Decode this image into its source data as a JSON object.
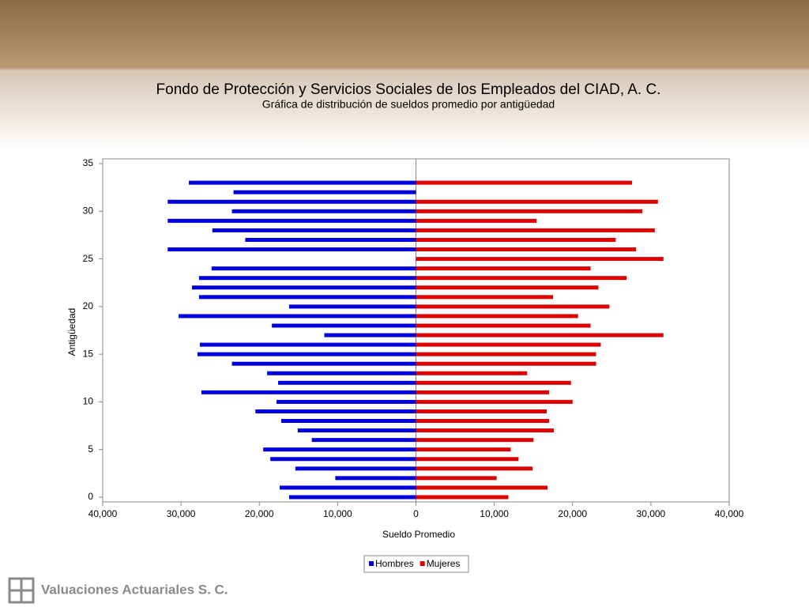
{
  "chart_data": {
    "type": "pyramid",
    "title": "Fondo de Protección y Servicios Sociales de los Empleados del CIAD, A. C.",
    "subtitle": "Gráfica de distribución de sueldos promedio por antigüedad",
    "x_label": "Sueldo Promedio",
    "y_label": "Antigüedad",
    "footer": "Valuaciones Actuariales S. C.",
    "y": [
      0,
      1,
      2,
      3,
      4,
      5,
      6,
      7,
      8,
      9,
      10,
      11,
      12,
      13,
      14,
      15,
      16,
      17,
      18,
      19,
      20,
      21,
      22,
      23,
      24,
      25,
      26,
      27,
      28,
      29,
      30,
      31,
      32,
      33
    ],
    "series": [
      {
        "name": "Hombres",
        "color": "#0000dd",
        "values": [
          -16200,
          -17400,
          -10300,
          -15400,
          -18600,
          -19500,
          -13300,
          -15100,
          -17200,
          -20500,
          -17800,
          -27400,
          -17600,
          -19000,
          -23500,
          -27900,
          -27600,
          -11700,
          -18400,
          -30300,
          -16200,
          -27700,
          -28600,
          -27700,
          -26100,
          0,
          -31700,
          -21800,
          -26000,
          -31700,
          -23500,
          -31700,
          -23300,
          -29000
        ]
      },
      {
        "name": "Mujeres",
        "color": "#dd0000",
        "values": [
          11800,
          16800,
          10300,
          14900,
          13100,
          12100,
          15000,
          17600,
          17000,
          16700,
          20000,
          17000,
          19800,
          14200,
          23000,
          23000,
          23600,
          31600,
          22300,
          20700,
          24700,
          17500,
          23300,
          26900,
          22300,
          31600,
          28100,
          25500,
          30500,
          15400,
          28900,
          30900,
          0,
          27600
        ]
      }
    ],
    "xlim": [
      -40000,
      40000
    ],
    "xticks": [
      {
        "value": -40000,
        "label": "40,000"
      },
      {
        "value": -30000,
        "label": "30,000"
      },
      {
        "value": -20000,
        "label": "20,000"
      },
      {
        "value": -10000,
        "label": "10,000"
      },
      0,
      {
        "value": 10000,
        "label": "10,000"
      },
      {
        "value": 20000,
        "label": "20,000"
      },
      {
        "value": 30000,
        "label": "30,000"
      },
      {
        "value": 40000,
        "label": "40,000"
      }
    ],
    "ylim": [
      -0.5,
      35.5
    ],
    "yticks": [
      0,
      5,
      10,
      15,
      20,
      25,
      30,
      35
    ],
    "legend": "bottom"
  }
}
